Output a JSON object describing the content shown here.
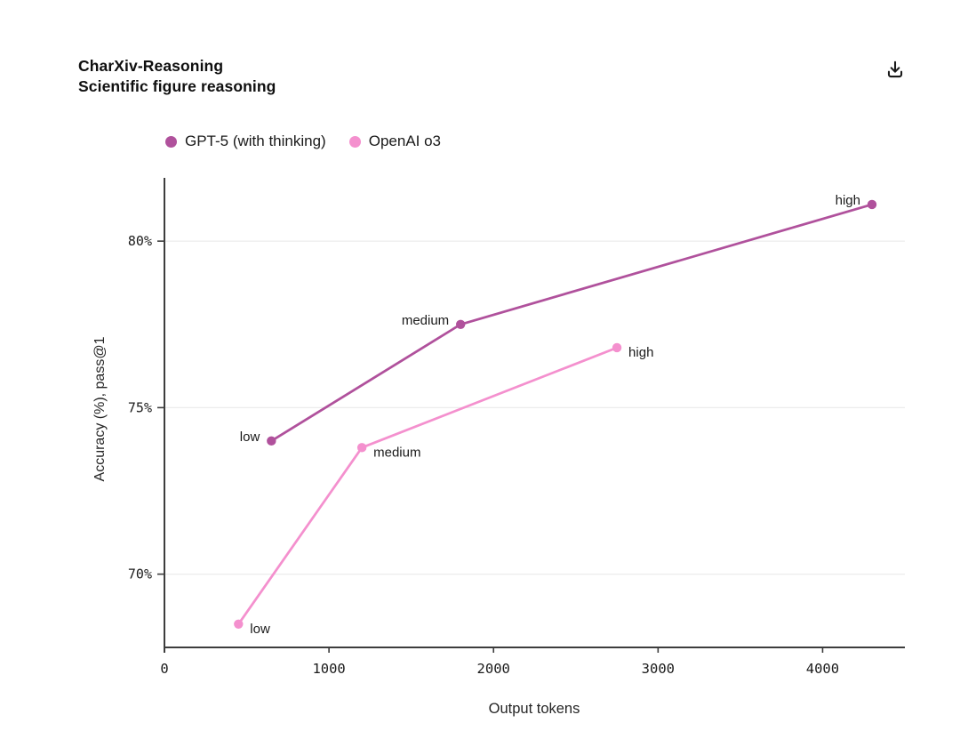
{
  "page": {
    "background": "#ffffff"
  },
  "header": {
    "title_line1": "CharXiv-Reasoning",
    "title_line2": "Scientific figure reasoning",
    "download_icon": "download-icon"
  },
  "legend": {
    "items": [
      {
        "label": "GPT-5 (with thinking)",
        "color": "#b0519c"
      },
      {
        "label": "OpenAI o3",
        "color": "#f490ce"
      }
    ]
  },
  "axes": {
    "xlabel": "Output tokens",
    "ylabel": "Accuracy (%), pass@1"
  },
  "chart_data": {
    "type": "line",
    "title": "CharXiv-Reasoning",
    "subtitle": "Scientific figure reasoning",
    "xlabel": "Output tokens",
    "ylabel": "Accuracy (%), pass@1",
    "xlim": [
      0,
      4500
    ],
    "ylim": [
      67.8,
      81.9
    ],
    "grid": "horizontal-only",
    "legend_position": "top-left",
    "x_ticks": [
      {
        "value": 0,
        "label": "0"
      },
      {
        "value": 1000,
        "label": "1000"
      },
      {
        "value": 2000,
        "label": "2000"
      },
      {
        "value": 3000,
        "label": "3000"
      },
      {
        "value": 4000,
        "label": "4000"
      }
    ],
    "y_ticks": [
      {
        "value": 70,
        "label": "70%"
      },
      {
        "value": 75,
        "label": "75%"
      },
      {
        "value": 80,
        "label": "80%"
      }
    ],
    "series": [
      {
        "name": "GPT-5 (with thinking)",
        "color": "#b0519c",
        "label_side": "left",
        "points": [
          {
            "x": 650,
            "y": 74.0,
            "label": "low"
          },
          {
            "x": 1800,
            "y": 77.5,
            "label": "medium"
          },
          {
            "x": 4300,
            "y": 81.1,
            "label": "high"
          }
        ]
      },
      {
        "name": "OpenAI o3",
        "color": "#f490ce",
        "label_side": "right",
        "points": [
          {
            "x": 450,
            "y": 68.5,
            "label": "low"
          },
          {
            "x": 1200,
            "y": 73.8,
            "label": "medium"
          },
          {
            "x": 2750,
            "y": 76.8,
            "label": "high"
          }
        ]
      }
    ],
    "style": {
      "axis_color": "#3d3d3d",
      "grid_color": "#ececec",
      "tick_label_color": "#1b1b1b",
      "point_label_color": "#1a1a1a"
    }
  }
}
